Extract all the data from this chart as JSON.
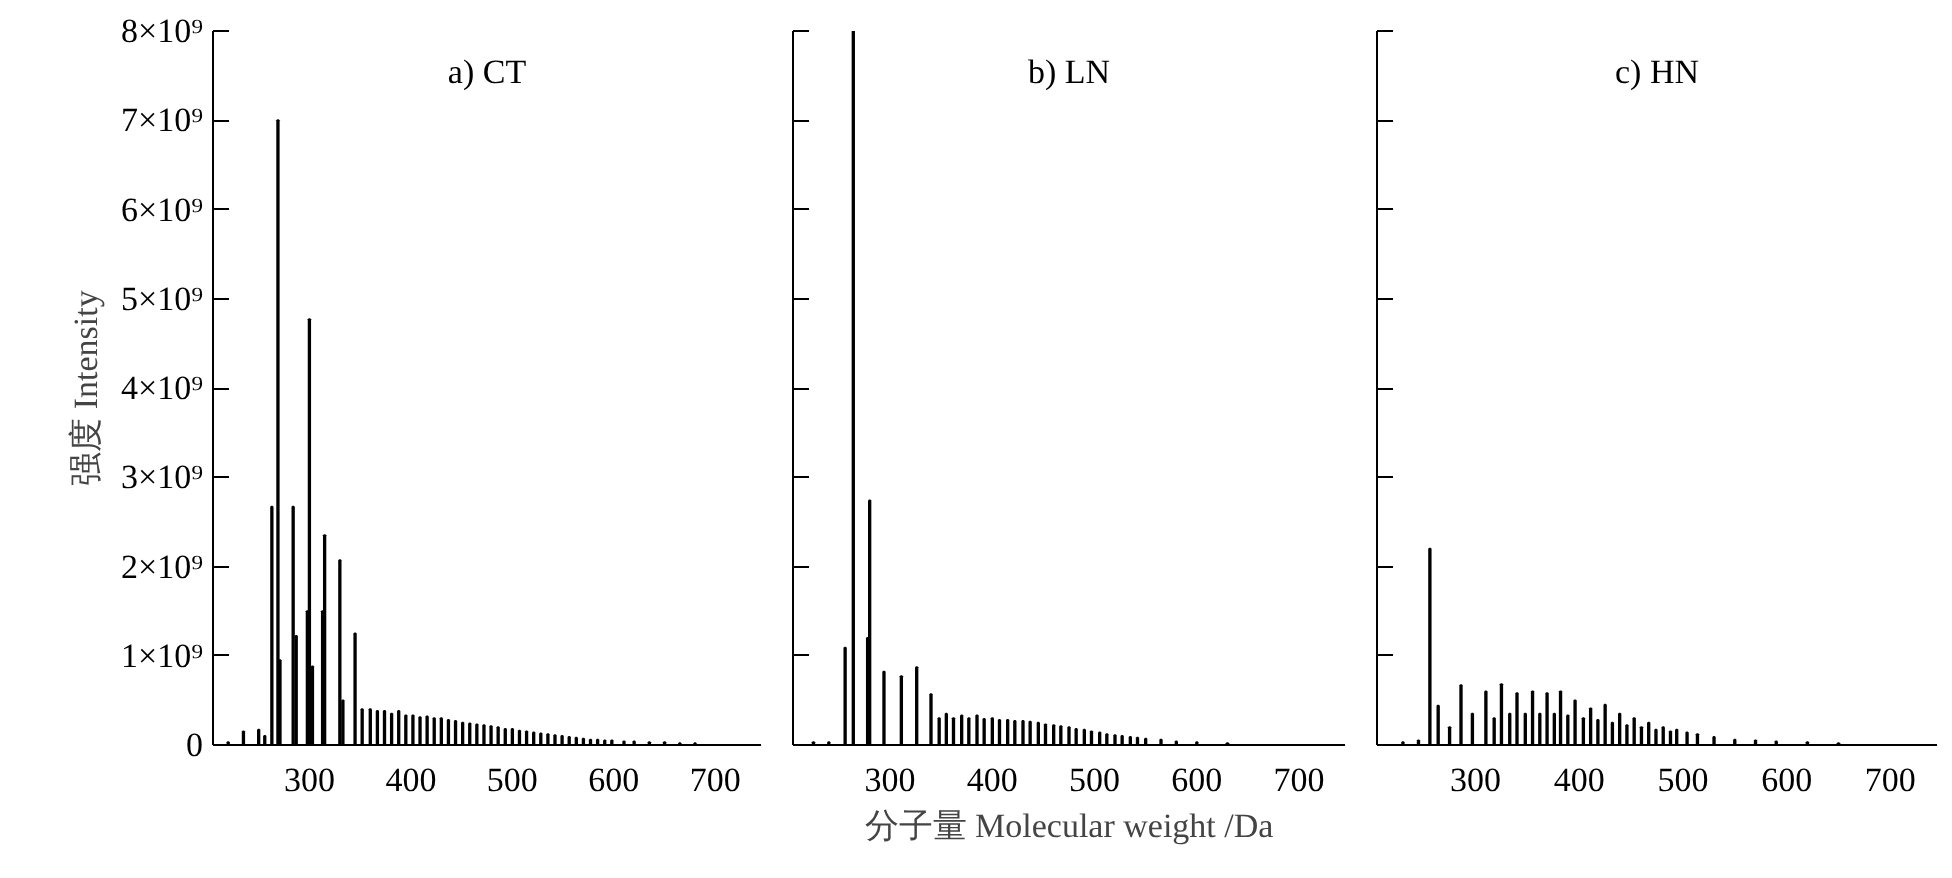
{
  "chart_data": [
    {
      "type": "bar",
      "title": "a) CT",
      "ylabel": "强度 Intensity",
      "xlim": [
        205,
        745
      ],
      "xticks": [
        300,
        400,
        500,
        600,
        700
      ],
      "ylim": [
        0,
        8000000000
      ],
      "yticks": [
        0,
        {
          "value": 1000000000,
          "label": "1×10⁹"
        },
        {
          "value": 2000000000,
          "label": "2×10⁹"
        },
        {
          "value": 3000000000,
          "label": "3×10⁹"
        },
        {
          "value": 4000000000,
          "label": "4×10⁹"
        },
        {
          "value": 5000000000,
          "label": "5×10⁹"
        },
        {
          "value": 6000000000,
          "label": "6×10⁹"
        },
        {
          "value": 7000000000,
          "label": "7×10⁹"
        },
        {
          "value": 8000000000,
          "label": "8×10⁹"
        }
      ],
      "grid": false,
      "x": [
        220,
        235,
        250,
        256,
        263,
        269,
        271,
        284,
        287,
        298,
        300,
        303,
        313,
        315,
        330,
        333,
        345,
        352,
        360,
        367,
        374,
        381,
        388,
        395,
        402,
        409,
        416,
        423,
        430,
        437,
        444,
        451,
        458,
        465,
        472,
        479,
        486,
        493,
        500,
        507,
        514,
        521,
        528,
        535,
        542,
        549,
        556,
        563,
        570,
        577,
        584,
        591,
        598,
        610,
        620,
        635,
        650,
        665,
        680
      ],
      "series": [
        {
          "color": "#000000",
          "values": [
            30000000,
            150000000,
            170000000,
            100000000,
            2670000000,
            7000000000,
            950000000,
            2670000000,
            1220000000,
            1500000000,
            4770000000,
            880000000,
            1500000000,
            2350000000,
            2070000000,
            500000000,
            1250000000,
            400000000,
            400000000,
            380000000,
            380000000,
            350000000,
            380000000,
            330000000,
            330000000,
            310000000,
            320000000,
            300000000,
            300000000,
            280000000,
            270000000,
            250000000,
            240000000,
            230000000,
            220000000,
            210000000,
            200000000,
            180000000,
            180000000,
            160000000,
            150000000,
            140000000,
            130000000,
            120000000,
            110000000,
            100000000,
            90000000,
            80000000,
            70000000,
            60000000,
            60000000,
            50000000,
            50000000,
            40000000,
            40000000,
            30000000,
            30000000,
            20000000,
            20000000
          ]
        }
      ]
    },
    {
      "type": "bar",
      "title": "b) LN",
      "xlabel": "分子量 Molecular weight /Da",
      "tick_labels": "x",
      "xlim": [
        205,
        745
      ],
      "xticks": [
        300,
        400,
        500,
        600,
        700
      ],
      "ylim": [
        0,
        8000000000
      ],
      "yticks": [
        {
          "value": 0,
          "label": null
        },
        {
          "value": 1000000000,
          "label": null
        },
        {
          "value": 2000000000,
          "label": null
        },
        {
          "value": 3000000000,
          "label": null
        },
        {
          "value": 4000000000,
          "label": null
        },
        {
          "value": 5000000000,
          "label": null
        },
        {
          "value": 6000000000,
          "label": null
        },
        {
          "value": 7000000000,
          "label": null
        },
        {
          "value": 8000000000,
          "label": null
        }
      ],
      "grid": false,
      "x": [
        225,
        240,
        256,
        264,
        278,
        280,
        294,
        311,
        326,
        340,
        348,
        355,
        362,
        370,
        377,
        385,
        392,
        400,
        407,
        415,
        422,
        430,
        437,
        445,
        452,
        460,
        467,
        475,
        482,
        490,
        497,
        505,
        512,
        520,
        527,
        535,
        542,
        550,
        565,
        580,
        600,
        630
      ],
      "series": [
        {
          "color": "#000000",
          "values": [
            30000000,
            30000000,
            1090000000,
            8000000000,
            1200000000,
            2740000000,
            820000000,
            770000000,
            870000000,
            570000000,
            300000000,
            350000000,
            300000000,
            330000000,
            300000000,
            330000000,
            290000000,
            300000000,
            280000000,
            280000000,
            270000000,
            270000000,
            260000000,
            250000000,
            230000000,
            220000000,
            210000000,
            200000000,
            180000000,
            170000000,
            150000000,
            140000000,
            120000000,
            110000000,
            100000000,
            90000000,
            80000000,
            70000000,
            60000000,
            40000000,
            30000000,
            20000000
          ]
        }
      ]
    },
    {
      "type": "bar",
      "title": "c) HN",
      "tick_labels": "x",
      "xlim": [
        205,
        745
      ],
      "xticks": [
        300,
        400,
        500,
        600,
        700
      ],
      "ylim": [
        0,
        8000000000
      ],
      "yticks": [
        {
          "value": 0,
          "label": null
        },
        {
          "value": 1000000000,
          "label": null
        },
        {
          "value": 2000000000,
          "label": null
        },
        {
          "value": 3000000000,
          "label": null
        },
        {
          "value": 4000000000,
          "label": null
        },
        {
          "value": 5000000000,
          "label": null
        },
        {
          "value": 6000000000,
          "label": null
        },
        {
          "value": 7000000000,
          "label": null
        },
        {
          "value": 8000000000,
          "label": null
        }
      ],
      "grid": false,
      "x": [
        230,
        245,
        256,
        264,
        275,
        286,
        297,
        310,
        318,
        325,
        333,
        340,
        348,
        355,
        362,
        369,
        376,
        382,
        389,
        396,
        404,
        411,
        418,
        425,
        432,
        439,
        446,
        453,
        460,
        467,
        474,
        481,
        488,
        494,
        504,
        514,
        530,
        550,
        570,
        590,
        620,
        650
      ],
      "series": [
        {
          "color": "#000000",
          "values": [
            30000000,
            50000000,
            2200000000,
            440000000,
            200000000,
            670000000,
            350000000,
            600000000,
            300000000,
            680000000,
            350000000,
            580000000,
            350000000,
            600000000,
            350000000,
            580000000,
            350000000,
            600000000,
            330000000,
            500000000,
            300000000,
            410000000,
            280000000,
            450000000,
            250000000,
            350000000,
            220000000,
            300000000,
            200000000,
            250000000,
            170000000,
            200000000,
            150000000,
            170000000,
            140000000,
            120000000,
            90000000,
            60000000,
            50000000,
            40000000,
            30000000,
            20000000
          ]
        }
      ]
    }
  ]
}
